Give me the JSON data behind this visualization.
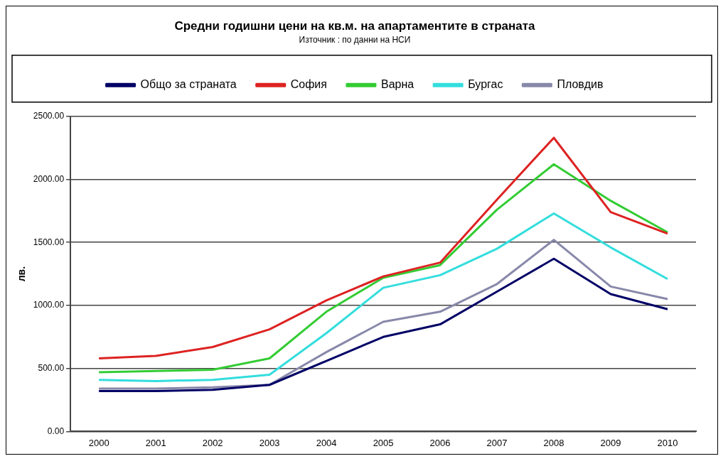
{
  "chart_data": {
    "type": "line",
    "title": "Средни годишни цени на кв.м. на апартаментите в страната",
    "annotations": [
      "Източник : по данни на НСИ"
    ],
    "ylabel": "лв.",
    "categories": [
      "2000",
      "2001",
      "2002",
      "2003",
      "2004",
      "2005",
      "2006",
      "2007",
      "2008",
      "2009",
      "2010"
    ],
    "series": [
      {
        "name": "Общо за страната",
        "color": "#000066",
        "values": [
          320,
          320,
          330,
          370,
          560,
          750,
          850,
          1110,
          1370,
          1090,
          970
        ]
      },
      {
        "name": "София",
        "color": "#dd2222",
        "values": [
          580,
          600,
          670,
          810,
          1040,
          1230,
          1340,
          1840,
          2330,
          1740,
          1570
        ]
      },
      {
        "name": "Варна",
        "color": "#33cc33",
        "values": [
          470,
          480,
          490,
          580,
          950,
          1220,
          1320,
          1760,
          2120,
          1830,
          1580
        ]
      },
      {
        "name": "Бургас",
        "color": "#33dddd",
        "values": [
          410,
          400,
          410,
          450,
          780,
          1140,
          1240,
          1450,
          1730,
          1460,
          1210
        ]
      },
      {
        "name": "Пловдив",
        "color": "#8888aa",
        "values": [
          340,
          340,
          350,
          370,
          630,
          870,
          950,
          1170,
          1520,
          1150,
          1050
        ]
      }
    ],
    "ylim": [
      0,
      2500
    ],
    "yticks": [
      {
        "value": 0,
        "label": "0.00"
      },
      {
        "value": 500,
        "label": "500.00"
      },
      {
        "value": 1000,
        "label": "1000.00"
      },
      {
        "value": 1500,
        "label": "1500.00"
      },
      {
        "value": 2000,
        "label": "2000.00"
      },
      {
        "value": 2500,
        "label": "2500.00"
      }
    ],
    "grid": "y",
    "legend": "top",
    "marker": "none",
    "line_style": "solid"
  }
}
